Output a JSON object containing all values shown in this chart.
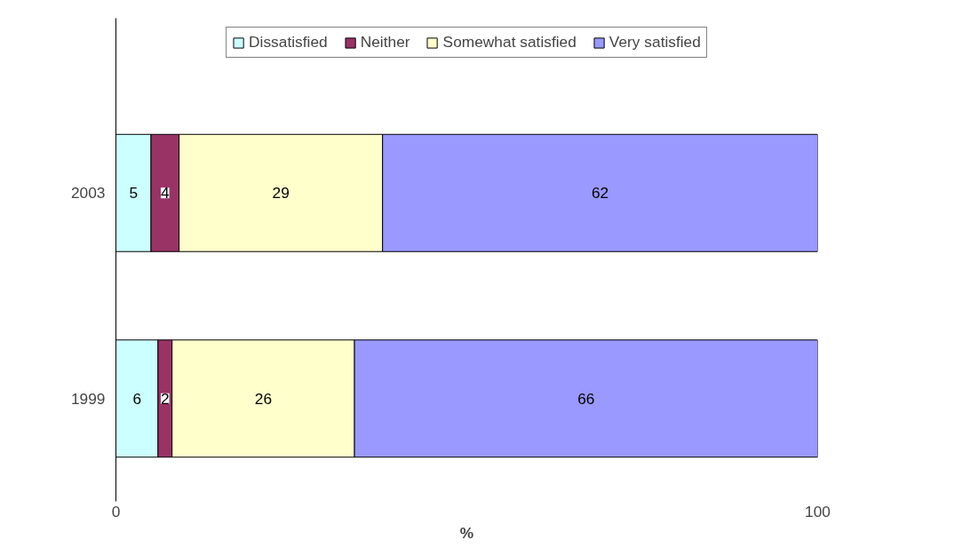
{
  "chart_data": {
    "type": "bar",
    "orientation": "horizontal",
    "stacked": true,
    "xlabel": "%",
    "categories": [
      "2003",
      "1999"
    ],
    "series": [
      {
        "name": "Dissatisfied",
        "color": "#ccffff",
        "values": [
          5,
          6
        ]
      },
      {
        "name": "Neither",
        "color": "#993366",
        "values": [
          4,
          2
        ]
      },
      {
        "name": "Somewhat satisfied",
        "color": "#ffffcc",
        "values": [
          29,
          26
        ]
      },
      {
        "name": "Very satisfied",
        "color": "#9999ff",
        "values": [
          62,
          66
        ]
      }
    ],
    "xlim": [
      0,
      100
    ],
    "xticks": [
      0,
      100
    ],
    "data_labels": true,
    "legend": "top",
    "grid": false
  }
}
